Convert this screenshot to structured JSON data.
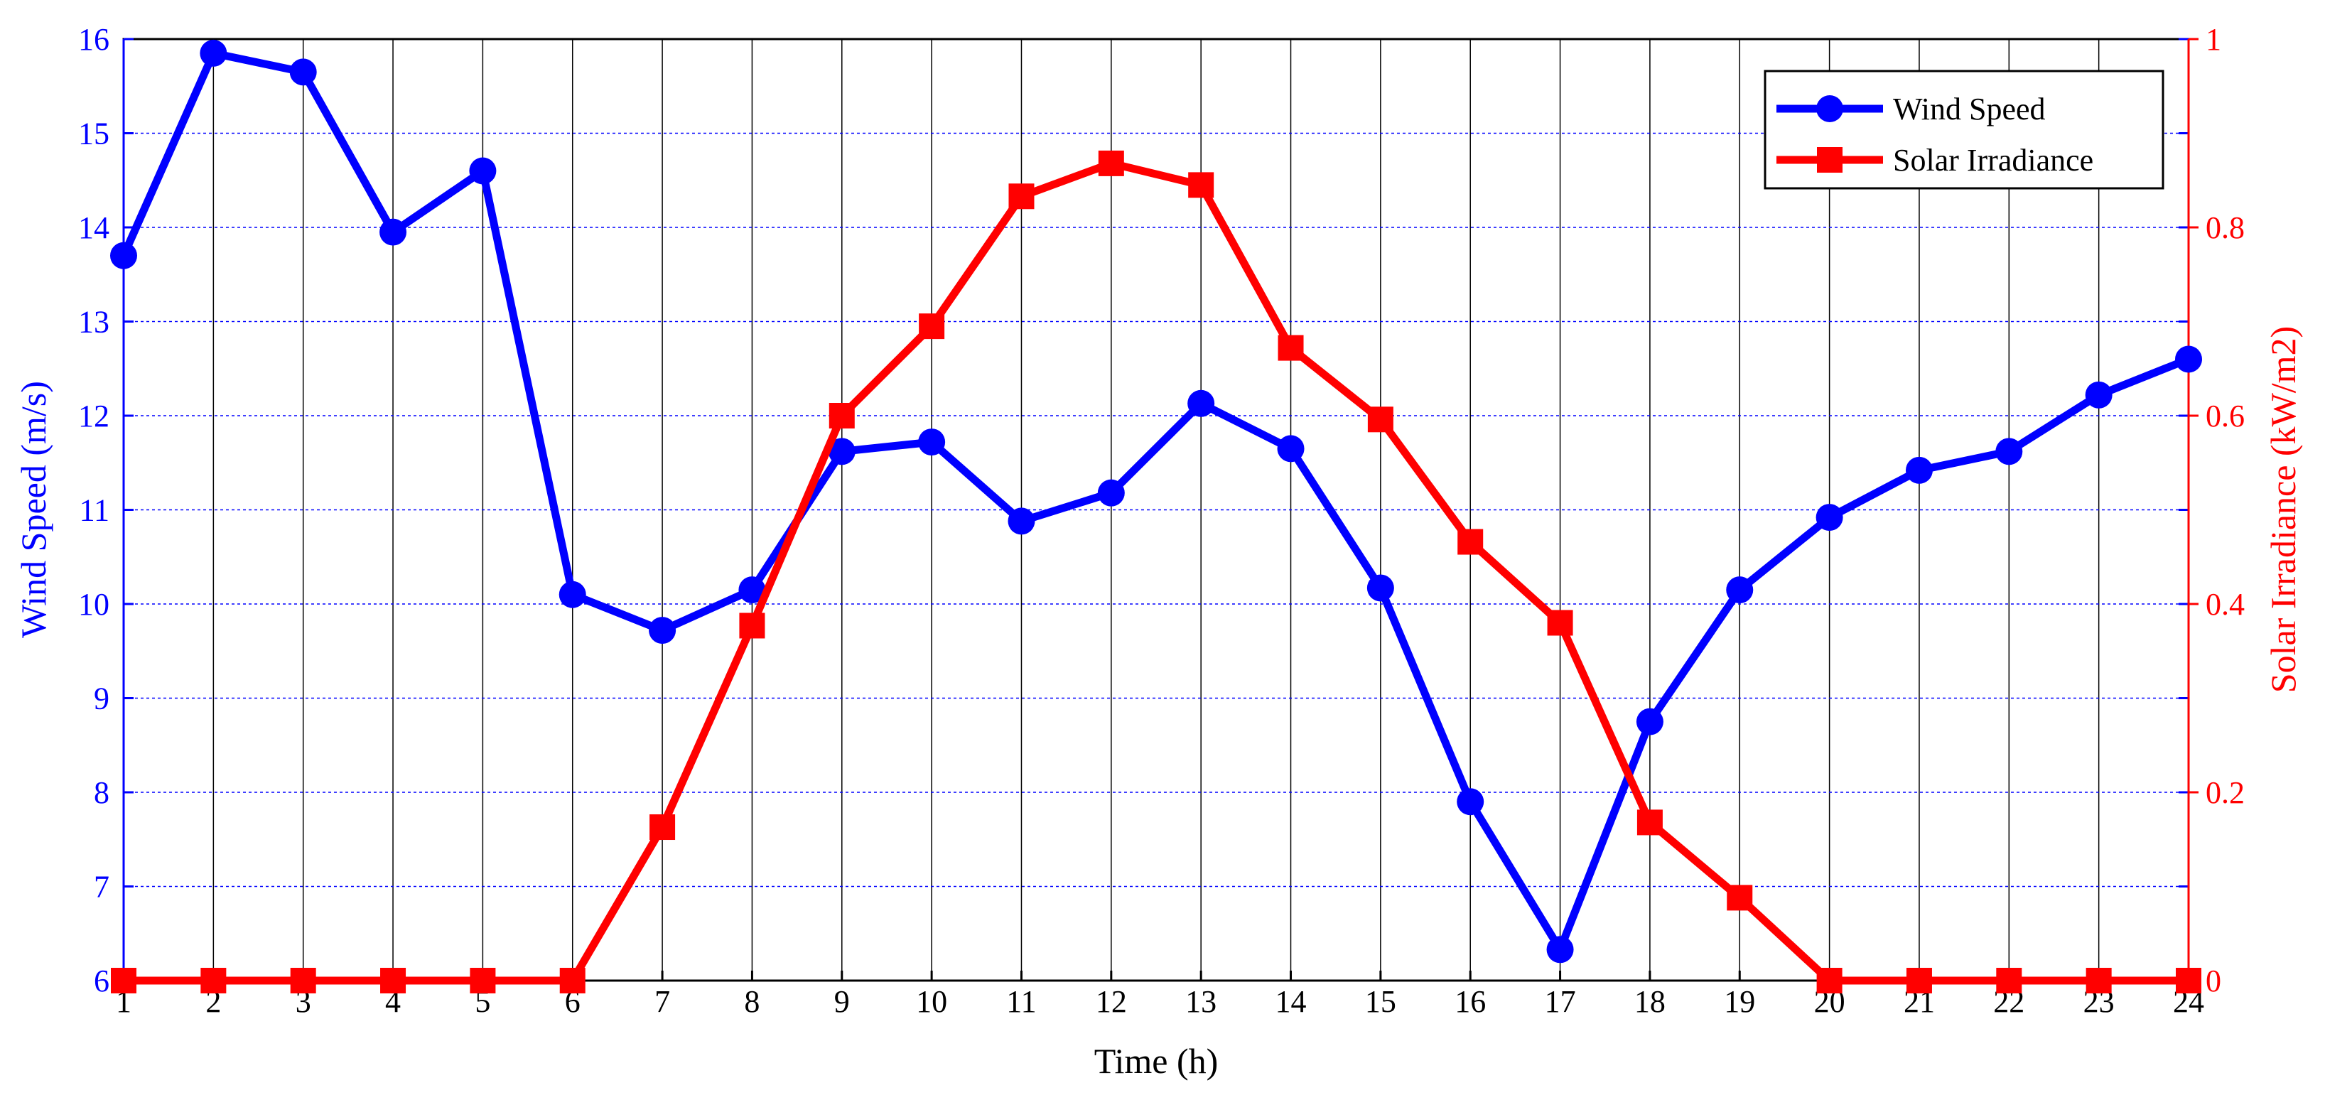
{
  "chart_data": {
    "type": "line",
    "title": "",
    "xlabel": "Time (h)",
    "ylabel_left": "Wind Speed (m/s)",
    "ylabel_right": "Solar Irradiance (kW/m2)",
    "x": [
      1,
      2,
      3,
      4,
      5,
      6,
      7,
      8,
      9,
      10,
      11,
      12,
      13,
      14,
      15,
      16,
      17,
      18,
      19,
      20,
      21,
      22,
      23,
      24
    ],
    "x_ticks": [
      "1",
      "2",
      "3",
      "4",
      "5",
      "6",
      "7",
      "8",
      "9",
      "10",
      "11",
      "12",
      "13",
      "14",
      "15",
      "16",
      "17",
      "18",
      "19",
      "20",
      "21",
      "22",
      "23",
      "24"
    ],
    "xlim": [
      1,
      24
    ],
    "ylim_left": [
      6,
      16
    ],
    "yticks_left": [
      "6",
      "7",
      "8",
      "9",
      "10",
      "11",
      "12",
      "13",
      "14",
      "15",
      "16"
    ],
    "ylim_right": [
      0,
      1
    ],
    "yticks_right": [
      "0",
      "0.2",
      "0.4",
      "0.6",
      "0.8",
      "1"
    ],
    "grid": true,
    "legend_position": "top-right",
    "series": [
      {
        "name": "Wind Speed",
        "axis": "left",
        "color": "#0000ff",
        "marker": "circle",
        "values": [
          13.7,
          15.85,
          15.65,
          13.95,
          14.6,
          10.1,
          9.72,
          10.15,
          11.62,
          11.72,
          10.88,
          11.18,
          12.13,
          11.65,
          10.17,
          7.9,
          6.33,
          8.75,
          10.15,
          10.92,
          11.42,
          11.62,
          12.22,
          12.6
        ]
      },
      {
        "name": "Solar Irradiance",
        "axis": "right",
        "color": "#ff0000",
        "marker": "square",
        "values": [
          0,
          0,
          0,
          0,
          0,
          0,
          0.163,
          0.377,
          0.6,
          0.695,
          0.833,
          0.868,
          0.845,
          0.672,
          0.596,
          0.466,
          0.38,
          0.168,
          0.088,
          0,
          0,
          0,
          0,
          0
        ]
      }
    ]
  }
}
